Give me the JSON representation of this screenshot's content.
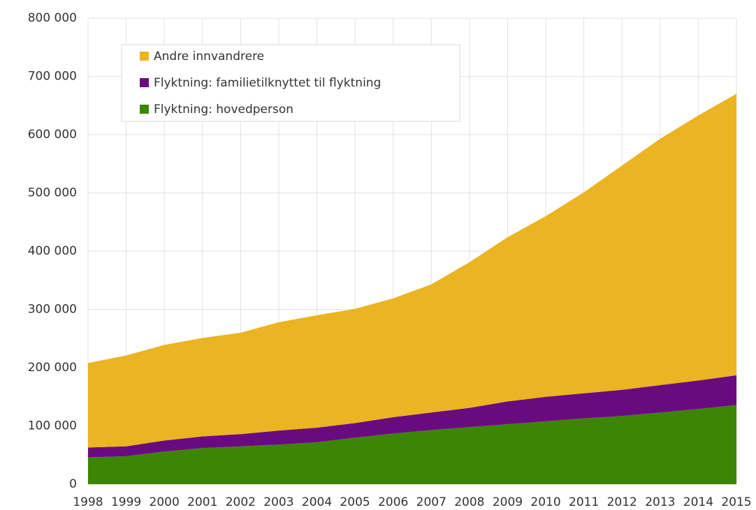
{
  "chart_data": {
    "type": "stacked_area",
    "categories": [
      "1998",
      "1999",
      "2000",
      "2001",
      "2002",
      "2003",
      "2004",
      "2005",
      "2006",
      "2007",
      "2008",
      "2009",
      "2010",
      "2011",
      "2012",
      "2013",
      "2014",
      "2015"
    ],
    "series": [
      {
        "name": "Flyktning: hovedperson",
        "color": "#3d8505",
        "values": [
          46000,
          48000,
          56000,
          62000,
          65000,
          68000,
          72000,
          80000,
          87000,
          93000,
          98000,
          103000,
          108000,
          113000,
          117000,
          123000,
          129000,
          136000
        ]
      },
      {
        "name": "Flyktning: familietilknyttet til flyktning",
        "color": "#6a0a80",
        "values": [
          17000,
          17000,
          19000,
          20000,
          21000,
          24000,
          25000,
          25000,
          28000,
          30000,
          33000,
          39000,
          42000,
          43000,
          45000,
          47000,
          49000,
          51000
        ]
      },
      {
        "name": "Andre innvandrere",
        "color": "#ebb422",
        "values": [
          145000,
          156000,
          164000,
          169000,
          174000,
          186000,
          193000,
          196000,
          204000,
          220000,
          250000,
          282000,
          310000,
          345000,
          385000,
          423000,
          455000,
          483000
        ]
      }
    ],
    "ylim": [
      0,
      800000
    ],
    "yticks": [
      0,
      {
        "value": 100000,
        "label": "100 000"
      },
      {
        "value": 200000,
        "label": "200 000"
      },
      {
        "value": 300000,
        "label": "300 000"
      },
      {
        "value": 400000,
        "label": "400 000"
      },
      {
        "value": 500000,
        "label": "500 000"
      },
      {
        "value": 600000,
        "label": "600 000"
      },
      {
        "value": 700000,
        "label": "700 000"
      },
      {
        "value": 800000,
        "label": "800 000"
      }
    ],
    "grid": true,
    "legend": "upper-left"
  }
}
